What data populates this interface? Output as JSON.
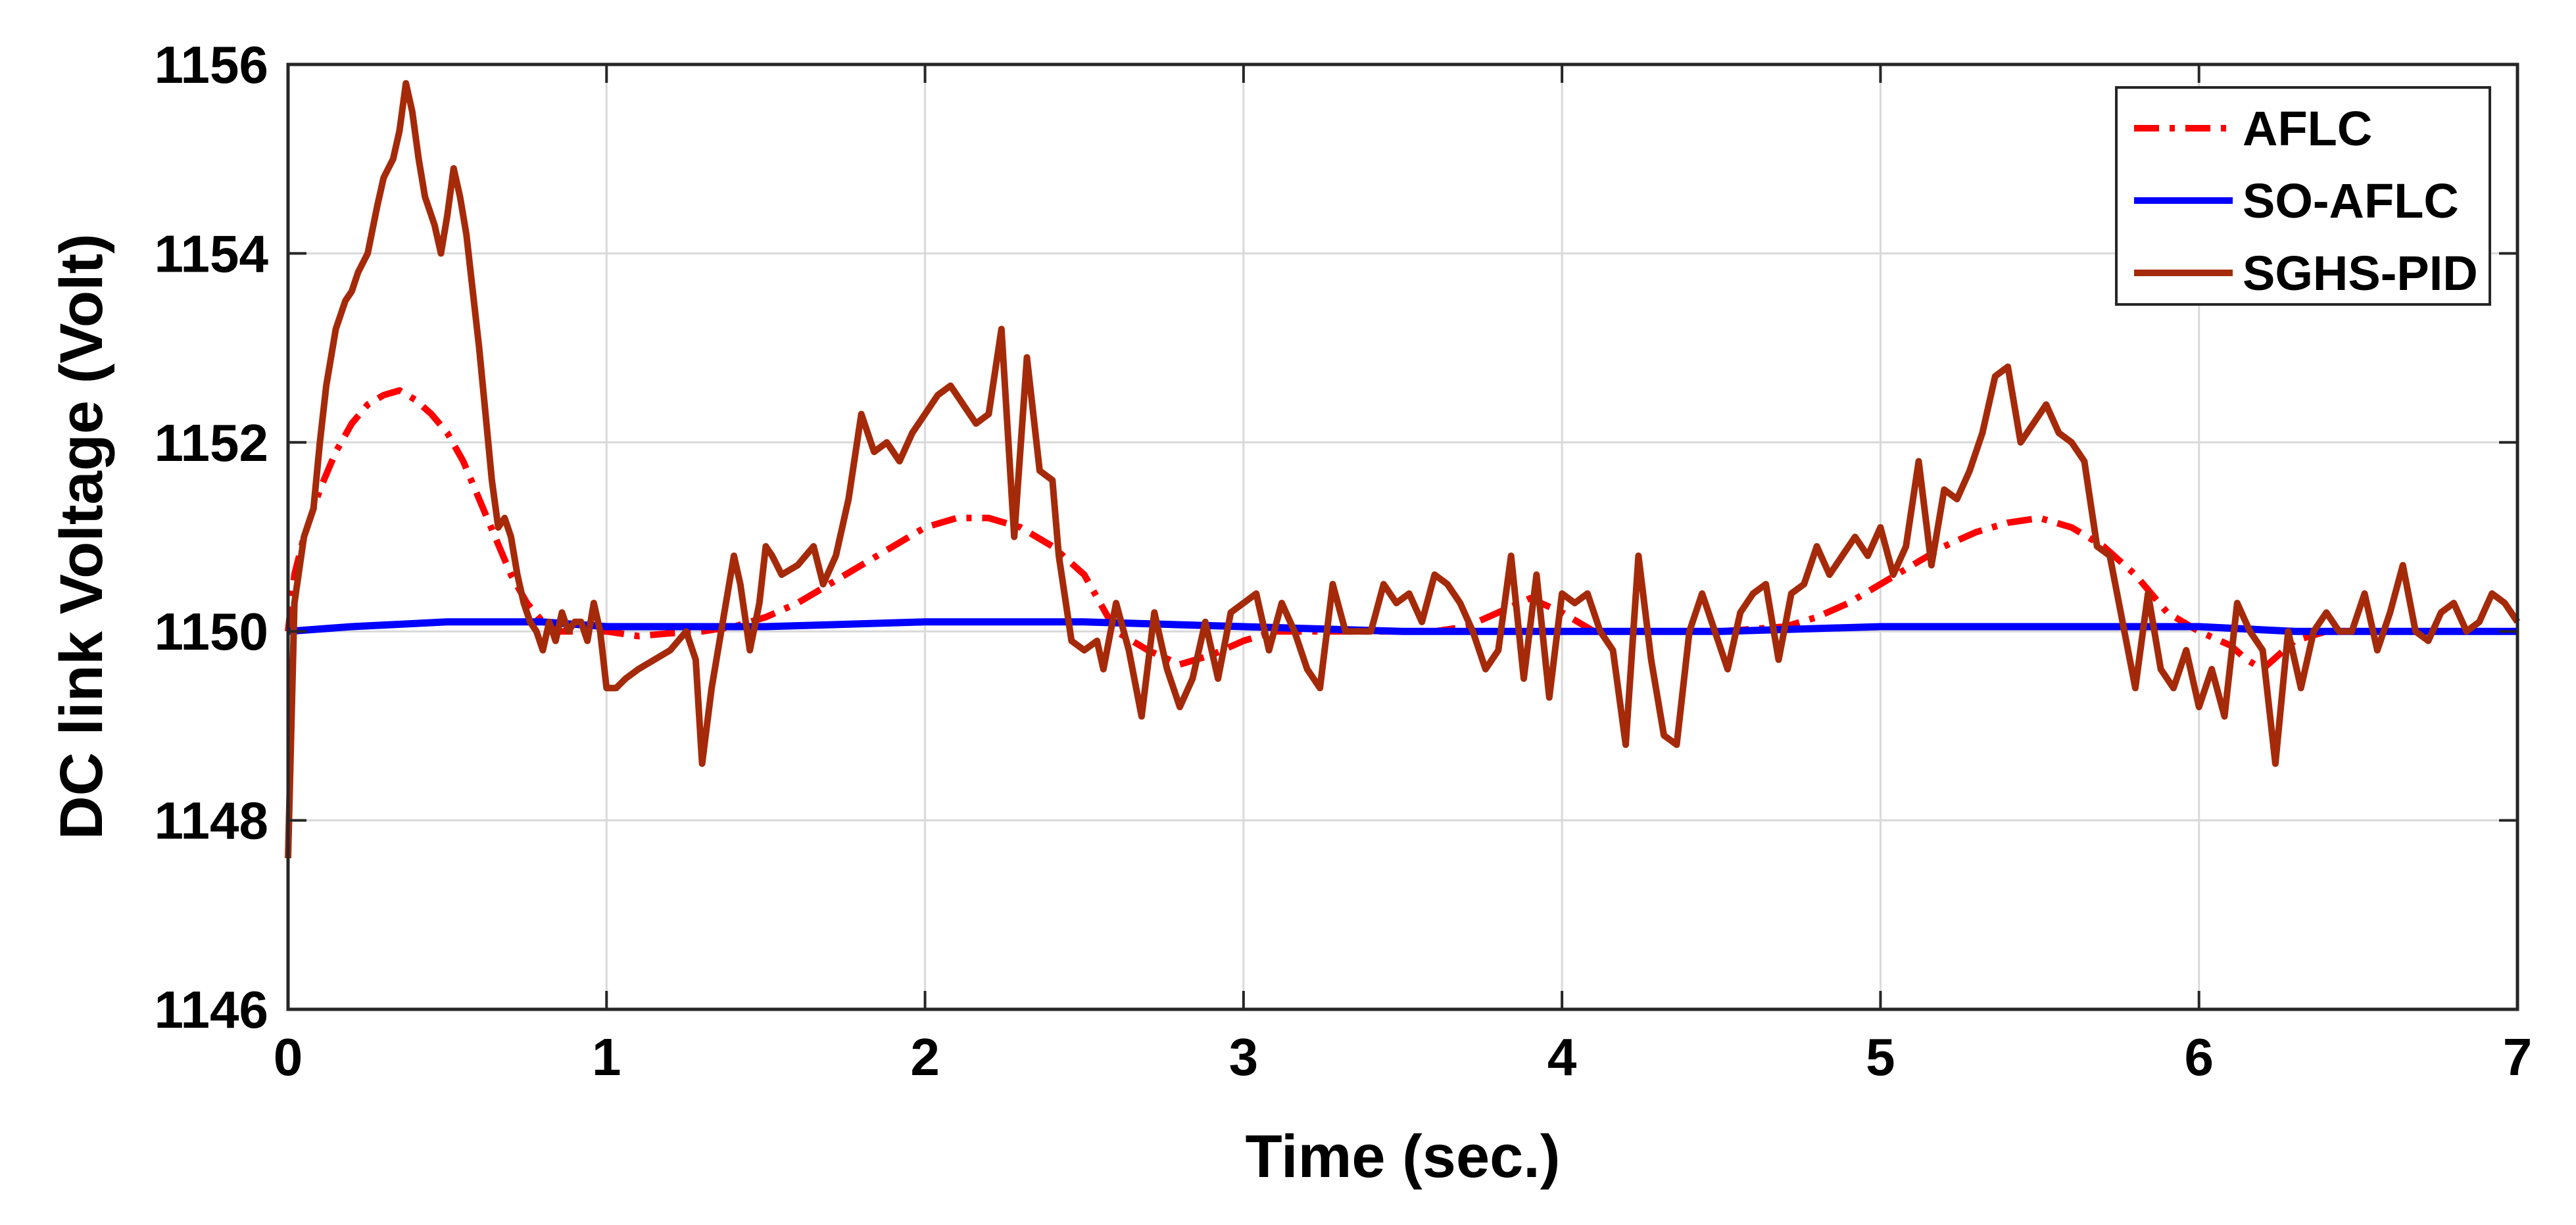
{
  "chart_data": {
    "type": "line",
    "title": "",
    "xlabel": "Time (sec.)",
    "ylabel": "DC link Voltage (Volt)",
    "xlim": [
      0,
      7
    ],
    "ylim": [
      1146,
      1156
    ],
    "x_ticks": [
      0,
      1,
      2,
      3,
      4,
      5,
      6,
      7
    ],
    "y_ticks": [
      1146,
      1148,
      1150,
      1152,
      1154,
      1156
    ],
    "grid": true,
    "legend_position": "top-right",
    "series": [
      {
        "name": "AFLC",
        "color": "#ff0000",
        "style": "dash-dot",
        "points": [
          [
            0,
            1150.0
          ],
          [
            0.02,
            1150.6
          ],
          [
            0.05,
            1151.0
          ],
          [
            0.1,
            1151.5
          ],
          [
            0.15,
            1151.9
          ],
          [
            0.2,
            1152.2
          ],
          [
            0.25,
            1152.4
          ],
          [
            0.3,
            1152.5
          ],
          [
            0.35,
            1152.55
          ],
          [
            0.4,
            1152.45
          ],
          [
            0.45,
            1152.3
          ],
          [
            0.5,
            1152.1
          ],
          [
            0.55,
            1151.8
          ],
          [
            0.6,
            1151.4
          ],
          [
            0.65,
            1151.0
          ],
          [
            0.7,
            1150.6
          ],
          [
            0.75,
            1150.3
          ],
          [
            0.8,
            1150.1
          ],
          [
            0.85,
            1150.0
          ],
          [
            0.9,
            1150.0
          ],
          [
            1.0,
            1150.0
          ],
          [
            1.1,
            1149.95
          ],
          [
            1.2,
            1149.98
          ],
          [
            1.3,
            1150.0
          ],
          [
            1.4,
            1150.05
          ],
          [
            1.5,
            1150.15
          ],
          [
            1.6,
            1150.3
          ],
          [
            1.7,
            1150.5
          ],
          [
            1.8,
            1150.7
          ],
          [
            1.9,
            1150.9
          ],
          [
            2.0,
            1151.1
          ],
          [
            2.1,
            1151.2
          ],
          [
            2.2,
            1151.2
          ],
          [
            2.3,
            1151.1
          ],
          [
            2.4,
            1150.9
          ],
          [
            2.5,
            1150.6
          ],
          [
            2.55,
            1150.3
          ],
          [
            2.6,
            1150.0
          ],
          [
            2.7,
            1149.8
          ],
          [
            2.8,
            1149.65
          ],
          [
            2.9,
            1149.75
          ],
          [
            3.0,
            1149.9
          ],
          [
            3.1,
            1150.0
          ],
          [
            3.2,
            1150.0
          ],
          [
            3.4,
            1150.0
          ],
          [
            3.6,
            1150.0
          ],
          [
            3.7,
            1150.05
          ],
          [
            3.8,
            1150.2
          ],
          [
            3.9,
            1150.35
          ],
          [
            4.0,
            1150.2
          ],
          [
            4.1,
            1150.0
          ],
          [
            4.3,
            1150.0
          ],
          [
            4.5,
            1150.0
          ],
          [
            4.7,
            1150.05
          ],
          [
            4.8,
            1150.15
          ],
          [
            4.9,
            1150.3
          ],
          [
            5.0,
            1150.5
          ],
          [
            5.1,
            1150.7
          ],
          [
            5.2,
            1150.9
          ],
          [
            5.3,
            1151.05
          ],
          [
            5.4,
            1151.15
          ],
          [
            5.5,
            1151.2
          ],
          [
            5.6,
            1151.1
          ],
          [
            5.7,
            1150.9
          ],
          [
            5.8,
            1150.6
          ],
          [
            5.85,
            1150.4
          ],
          [
            5.9,
            1150.2
          ],
          [
            6.0,
            1150.0
          ],
          [
            6.1,
            1149.85
          ],
          [
            6.15,
            1149.7
          ],
          [
            6.2,
            1149.6
          ],
          [
            6.25,
            1149.75
          ],
          [
            6.3,
            1149.9
          ],
          [
            6.4,
            1150.0
          ],
          [
            6.6,
            1150.0
          ],
          [
            6.8,
            1150.0
          ],
          [
            7.0,
            1150.0
          ]
        ]
      },
      {
        "name": "SO-AFLC",
        "color": "#0000ff",
        "style": "solid",
        "points": [
          [
            0,
            1150.0
          ],
          [
            0.2,
            1150.05
          ],
          [
            0.5,
            1150.1
          ],
          [
            0.8,
            1150.1
          ],
          [
            1.0,
            1150.05
          ],
          [
            1.5,
            1150.05
          ],
          [
            2.0,
            1150.1
          ],
          [
            2.5,
            1150.1
          ],
          [
            3.0,
            1150.05
          ],
          [
            3.5,
            1150.0
          ],
          [
            4.0,
            1150.0
          ],
          [
            4.5,
            1150.0
          ],
          [
            5.0,
            1150.05
          ],
          [
            5.5,
            1150.05
          ],
          [
            6.0,
            1150.05
          ],
          [
            6.3,
            1150.0
          ],
          [
            7.0,
            1150.0
          ]
        ]
      },
      {
        "name": "SGHS-PID",
        "color": "#a52a0a",
        "style": "solid",
        "points": [
          [
            0,
            1147.6
          ],
          [
            0.02,
            1150.3
          ],
          [
            0.05,
            1151.0
          ],
          [
            0.08,
            1151.3
          ],
          [
            0.1,
            1152.0
          ],
          [
            0.12,
            1152.6
          ],
          [
            0.15,
            1153.2
          ],
          [
            0.18,
            1153.5
          ],
          [
            0.2,
            1153.6
          ],
          [
            0.22,
            1153.8
          ],
          [
            0.25,
            1154.0
          ],
          [
            0.28,
            1154.5
          ],
          [
            0.3,
            1154.8
          ],
          [
            0.33,
            1155.0
          ],
          [
            0.35,
            1155.3
          ],
          [
            0.37,
            1155.8
          ],
          [
            0.39,
            1155.5
          ],
          [
            0.41,
            1155.0
          ],
          [
            0.43,
            1154.6
          ],
          [
            0.46,
            1154.3
          ],
          [
            0.48,
            1154.0
          ],
          [
            0.5,
            1154.4
          ],
          [
            0.52,
            1154.9
          ],
          [
            0.54,
            1154.6
          ],
          [
            0.56,
            1154.2
          ],
          [
            0.58,
            1153.6
          ],
          [
            0.6,
            1153.0
          ],
          [
            0.62,
            1152.3
          ],
          [
            0.64,
            1151.6
          ],
          [
            0.66,
            1151.1
          ],
          [
            0.68,
            1151.2
          ],
          [
            0.7,
            1151.0
          ],
          [
            0.72,
            1150.6
          ],
          [
            0.74,
            1150.3
          ],
          [
            0.76,
            1150.1
          ],
          [
            0.78,
            1150.0
          ],
          [
            0.8,
            1149.8
          ],
          [
            0.82,
            1150.1
          ],
          [
            0.84,
            1149.9
          ],
          [
            0.86,
            1150.2
          ],
          [
            0.88,
            1150.0
          ],
          [
            0.9,
            1150.1
          ],
          [
            0.92,
            1150.1
          ],
          [
            0.94,
            1149.9
          ],
          [
            0.96,
            1150.3
          ],
          [
            0.98,
            1150.0
          ],
          [
            1.0,
            1149.4
          ],
          [
            1.03,
            1149.4
          ],
          [
            1.06,
            1149.5
          ],
          [
            1.1,
            1149.6
          ],
          [
            1.15,
            1149.7
          ],
          [
            1.2,
            1149.8
          ],
          [
            1.25,
            1150.0
          ],
          [
            1.28,
            1149.7
          ],
          [
            1.3,
            1148.6
          ],
          [
            1.33,
            1149.4
          ],
          [
            1.36,
            1150.0
          ],
          [
            1.4,
            1150.8
          ],
          [
            1.42,
            1150.5
          ],
          [
            1.45,
            1149.8
          ],
          [
            1.48,
            1150.3
          ],
          [
            1.5,
            1150.9
          ],
          [
            1.52,
            1150.8
          ],
          [
            1.55,
            1150.6
          ],
          [
            1.6,
            1150.7
          ],
          [
            1.65,
            1150.9
          ],
          [
            1.68,
            1150.5
          ],
          [
            1.72,
            1150.8
          ],
          [
            1.76,
            1151.4
          ],
          [
            1.8,
            1152.3
          ],
          [
            1.84,
            1151.9
          ],
          [
            1.88,
            1152.0
          ],
          [
            1.92,
            1151.8
          ],
          [
            1.96,
            1152.1
          ],
          [
            2.0,
            1152.3
          ],
          [
            2.04,
            1152.5
          ],
          [
            2.08,
            1152.6
          ],
          [
            2.12,
            1152.4
          ],
          [
            2.16,
            1152.2
          ],
          [
            2.2,
            1152.3
          ],
          [
            2.24,
            1153.2
          ],
          [
            2.28,
            1151.0
          ],
          [
            2.32,
            1152.9
          ],
          [
            2.36,
            1151.7
          ],
          [
            2.4,
            1151.6
          ],
          [
            2.42,
            1150.8
          ],
          [
            2.46,
            1149.9
          ],
          [
            2.5,
            1149.8
          ],
          [
            2.54,
            1149.9
          ],
          [
            2.56,
            1149.6
          ],
          [
            2.6,
            1150.3
          ],
          [
            2.64,
            1149.8
          ],
          [
            2.68,
            1149.1
          ],
          [
            2.72,
            1150.2
          ],
          [
            2.76,
            1149.6
          ],
          [
            2.8,
            1149.2
          ],
          [
            2.84,
            1149.5
          ],
          [
            2.88,
            1150.1
          ],
          [
            2.92,
            1149.5
          ],
          [
            2.96,
            1150.2
          ],
          [
            3.0,
            1150.3
          ],
          [
            3.04,
            1150.4
          ],
          [
            3.08,
            1149.8
          ],
          [
            3.12,
            1150.3
          ],
          [
            3.16,
            1150.0
          ],
          [
            3.2,
            1149.6
          ],
          [
            3.24,
            1149.4
          ],
          [
            3.28,
            1150.5
          ],
          [
            3.32,
            1150.0
          ],
          [
            3.36,
            1150.0
          ],
          [
            3.4,
            1150.0
          ],
          [
            3.44,
            1150.5
          ],
          [
            3.48,
            1150.3
          ],
          [
            3.52,
            1150.4
          ],
          [
            3.56,
            1150.1
          ],
          [
            3.6,
            1150.6
          ],
          [
            3.64,
            1150.5
          ],
          [
            3.68,
            1150.3
          ],
          [
            3.72,
            1150.0
          ],
          [
            3.76,
            1149.6
          ],
          [
            3.8,
            1149.8
          ],
          [
            3.84,
            1150.8
          ],
          [
            3.88,
            1149.5
          ],
          [
            3.92,
            1150.6
          ],
          [
            3.96,
            1149.3
          ],
          [
            4.0,
            1150.4
          ],
          [
            4.04,
            1150.3
          ],
          [
            4.08,
            1150.4
          ],
          [
            4.12,
            1150.0
          ],
          [
            4.16,
            1149.8
          ],
          [
            4.2,
            1148.8
          ],
          [
            4.24,
            1150.8
          ],
          [
            4.28,
            1149.7
          ],
          [
            4.32,
            1148.9
          ],
          [
            4.36,
            1148.8
          ],
          [
            4.4,
            1150.0
          ],
          [
            4.44,
            1150.4
          ],
          [
            4.48,
            1150.0
          ],
          [
            4.52,
            1149.6
          ],
          [
            4.56,
            1150.2
          ],
          [
            4.6,
            1150.4
          ],
          [
            4.64,
            1150.5
          ],
          [
            4.68,
            1149.7
          ],
          [
            4.72,
            1150.4
          ],
          [
            4.76,
            1150.5
          ],
          [
            4.8,
            1150.9
          ],
          [
            4.84,
            1150.6
          ],
          [
            4.88,
            1150.8
          ],
          [
            4.92,
            1151.0
          ],
          [
            4.96,
            1150.8
          ],
          [
            5.0,
            1151.1
          ],
          [
            5.04,
            1150.6
          ],
          [
            5.08,
            1150.9
          ],
          [
            5.12,
            1151.8
          ],
          [
            5.16,
            1150.7
          ],
          [
            5.2,
            1151.5
          ],
          [
            5.24,
            1151.4
          ],
          [
            5.28,
            1151.7
          ],
          [
            5.32,
            1152.1
          ],
          [
            5.36,
            1152.7
          ],
          [
            5.4,
            1152.8
          ],
          [
            5.44,
            1152.0
          ],
          [
            5.48,
            1152.2
          ],
          [
            5.52,
            1152.4
          ],
          [
            5.56,
            1152.1
          ],
          [
            5.6,
            1152.0
          ],
          [
            5.64,
            1151.8
          ],
          [
            5.68,
            1150.9
          ],
          [
            5.72,
            1150.8
          ],
          [
            5.76,
            1150.1
          ],
          [
            5.8,
            1149.4
          ],
          [
            5.84,
            1150.4
          ],
          [
            5.88,
            1149.6
          ],
          [
            5.92,
            1149.4
          ],
          [
            5.96,
            1149.8
          ],
          [
            6.0,
            1149.2
          ],
          [
            6.04,
            1149.6
          ],
          [
            6.08,
            1149.1
          ],
          [
            6.12,
            1150.3
          ],
          [
            6.16,
            1150.0
          ],
          [
            6.2,
            1149.8
          ],
          [
            6.24,
            1148.6
          ],
          [
            6.28,
            1150.0
          ],
          [
            6.32,
            1149.4
          ],
          [
            6.36,
            1150.0
          ],
          [
            6.4,
            1150.2
          ],
          [
            6.44,
            1150.0
          ],
          [
            6.48,
            1150.0
          ],
          [
            6.52,
            1150.4
          ],
          [
            6.56,
            1149.8
          ],
          [
            6.6,
            1150.2
          ],
          [
            6.64,
            1150.7
          ],
          [
            6.68,
            1150.0
          ],
          [
            6.72,
            1149.9
          ],
          [
            6.76,
            1150.2
          ],
          [
            6.8,
            1150.3
          ],
          [
            6.84,
            1150.0
          ],
          [
            6.88,
            1150.1
          ],
          [
            6.92,
            1150.4
          ],
          [
            6.96,
            1150.3
          ],
          [
            7.0,
            1150.1
          ]
        ]
      }
    ]
  }
}
